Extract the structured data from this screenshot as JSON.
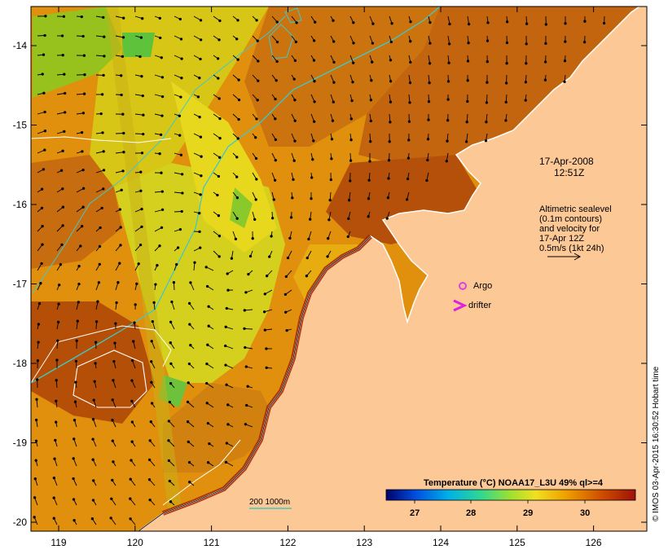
{
  "x_ticks": [
    "119",
    "120",
    "121",
    "122",
    "123",
    "124",
    "125",
    "126"
  ],
  "y_ticks": [
    "-14",
    "-15",
    "-16",
    "-17",
    "-18",
    "-19",
    "-20"
  ],
  "annotations": {
    "date": "17-Apr-2008",
    "time": "12:51Z",
    "alt_line1": "Altimetric sealevel",
    "alt_line2": "(0.1m contours)",
    "alt_line3": "and velocity for",
    "alt_line4": "17-Apr 12Z",
    "alt_line5": "0.5m/s (1kt 24h)",
    "argo": "Argo",
    "drifter": "drifter",
    "depth": "200  1000m"
  },
  "colorbar": {
    "title": "Temperature (°C) NOAA17_L3U 49% ql>=4",
    "ticks": [
      "27",
      "28",
      "29",
      "30"
    ]
  },
  "credit": "© IMOS 03-Apr-2015 16:30:52 Hobart time",
  "colors": {
    "land": "#fcc896",
    "sst_warm": "#b8500a",
    "sst_mid": "#e88a10",
    "sst_cool": "#d8e020",
    "argo_marker": "#e040e0",
    "drifter_marker": "#e020e0",
    "depth_contour": "#40c8c8"
  },
  "markers": [
    {
      "name": "argo-marker",
      "symbol": "circle",
      "lon": 124.33,
      "lat": -17.04
    },
    {
      "name": "drifter-marker",
      "symbol": "chevron",
      "lon": 124.25,
      "lat": -17.3
    }
  ]
}
